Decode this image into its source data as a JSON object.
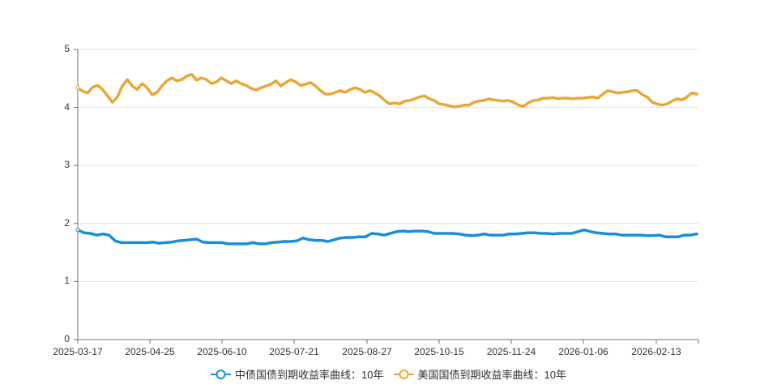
{
  "chart_data": {
    "type": "line",
    "title": "",
    "xlabel": "",
    "ylabel": "",
    "ylim": [
      0,
      5
    ],
    "yticks": [
      0,
      1,
      2,
      3,
      4,
      5
    ],
    "xtick_labels": [
      "2025-03-17",
      "2025-04-25",
      "2025-06-10",
      "2025-07-21",
      "2025-08-27",
      "2025-10-15",
      "2025-11-24",
      "2026-01-06",
      "2026-02-13"
    ],
    "grid": {
      "y": true,
      "x": false
    },
    "legend_position": "bottom",
    "series": [
      {
        "name": "中债国债到期收益率曲线：10年",
        "color": "#1a8fd6",
        "values": [
          1.89,
          1.84,
          1.83,
          1.8,
          1.82,
          1.8,
          1.7,
          1.67,
          1.67,
          1.67,
          1.67,
          1.67,
          1.68,
          1.66,
          1.67,
          1.68,
          1.7,
          1.71,
          1.72,
          1.73,
          1.68,
          1.67,
          1.67,
          1.67,
          1.65,
          1.65,
          1.65,
          1.65,
          1.67,
          1.65,
          1.65,
          1.67,
          1.68,
          1.69,
          1.69,
          1.7,
          1.75,
          1.72,
          1.71,
          1.71,
          1.69,
          1.72,
          1.75,
          1.76,
          1.76,
          1.77,
          1.77,
          1.83,
          1.82,
          1.8,
          1.83,
          1.86,
          1.87,
          1.86,
          1.87,
          1.87,
          1.86,
          1.83,
          1.83,
          1.83,
          1.83,
          1.82,
          1.8,
          1.79,
          1.8,
          1.82,
          1.8,
          1.8,
          1.8,
          1.82,
          1.82,
          1.83,
          1.84,
          1.84,
          1.83,
          1.83,
          1.82,
          1.83,
          1.83,
          1.83,
          1.86,
          1.89,
          1.86,
          1.84,
          1.83,
          1.82,
          1.82,
          1.8,
          1.8,
          1.8,
          1.8,
          1.79,
          1.79,
          1.8,
          1.77,
          1.77,
          1.77,
          1.8,
          1.8,
          1.82
        ]
      },
      {
        "name": "美国国债到期收益率曲线：10年",
        "color": "#e8a838",
        "values": [
          4.34,
          4.28,
          4.25,
          4.35,
          4.38,
          4.31,
          4.2,
          4.09,
          4.18,
          4.37,
          4.48,
          4.37,
          4.31,
          4.41,
          4.34,
          4.22,
          4.26,
          4.37,
          4.46,
          4.51,
          4.46,
          4.48,
          4.54,
          4.57,
          4.47,
          4.51,
          4.48,
          4.41,
          4.44,
          4.51,
          4.46,
          4.41,
          4.46,
          4.41,
          4.38,
          4.33,
          4.3,
          4.34,
          4.37,
          4.4,
          4.46,
          4.37,
          4.43,
          4.48,
          4.44,
          4.38,
          4.4,
          4.43,
          4.37,
          4.29,
          4.23,
          4.23,
          4.26,
          4.29,
          4.26,
          4.31,
          4.34,
          4.31,
          4.26,
          4.29,
          4.25,
          4.2,
          4.12,
          4.06,
          4.08,
          4.06,
          4.11,
          4.12,
          4.15,
          4.18,
          4.2,
          4.15,
          4.12,
          4.06,
          4.05,
          4.03,
          4.01,
          4.02,
          4.04,
          4.04,
          4.09,
          4.11,
          4.12,
          4.15,
          4.13,
          4.12,
          4.11,
          4.12,
          4.09,
          4.04,
          4.02,
          4.08,
          4.12,
          4.13,
          4.16,
          4.16,
          4.17,
          4.15,
          4.16,
          4.16,
          4.15,
          4.16,
          4.16,
          4.17,
          4.18,
          4.16,
          4.23,
          4.29,
          4.27,
          4.25,
          4.26,
          4.27,
          4.29,
          4.29,
          4.22,
          4.18,
          4.09,
          4.06,
          4.04,
          4.06,
          4.11,
          4.15,
          4.13,
          4.18,
          4.25,
          4.23
        ]
      }
    ]
  },
  "legend": {
    "items": [
      {
        "label": "中债国债到期收益率曲线：10年",
        "color": "#1a8fd6"
      },
      {
        "label": "美国国债到期收益率曲线：10年",
        "color": "#e8a838"
      }
    ]
  }
}
